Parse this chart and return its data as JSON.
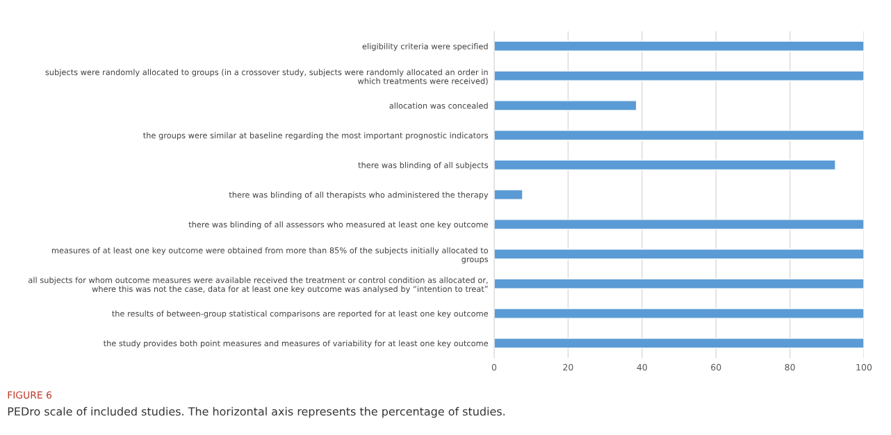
{
  "chart_data": {
    "type": "bar",
    "orientation": "horizontal",
    "categories": [
      "eligibility criteria were specified",
      "subjects were randomly allocated to groups (in a crossover study, subjects were randomly allocated an order in\nwhich treatments were received)",
      "allocation was concealed",
      "the groups were similar at baseline regarding the most important prognostic indicators",
      "there was blinding of all subjects",
      "there was blinding of all therapists who administered the therapy",
      "there was blinding of all assessors who measured at least one key outcome",
      "measures of at least one key outcome were obtained from more than 85% of the subjects initially allocated to\ngroups",
      "all subjects for whom outcome measures were available received the treatment or control condition as allocated or,\nwhere this was not the case, data for at least one key outcome was analysed by “intention to treat”",
      "the results of between-group statistical comparisons are reported for at least one key outcome",
      "the study provides both point measures and measures of variability for at least one key outcome"
    ],
    "values": [
      100,
      100,
      38.5,
      100,
      92.3,
      7.7,
      100,
      100,
      100,
      100,
      100
    ],
    "color": "#5b9bd5",
    "xlim": [
      0,
      100
    ],
    "xticks": [
      0,
      20,
      40,
      60,
      80,
      100
    ],
    "grid": "x",
    "legend": false,
    "annotations": [
      "FIGURE 6",
      "PEDro scale of included studies. The horizontal axis represents the percentage of studies."
    ]
  }
}
